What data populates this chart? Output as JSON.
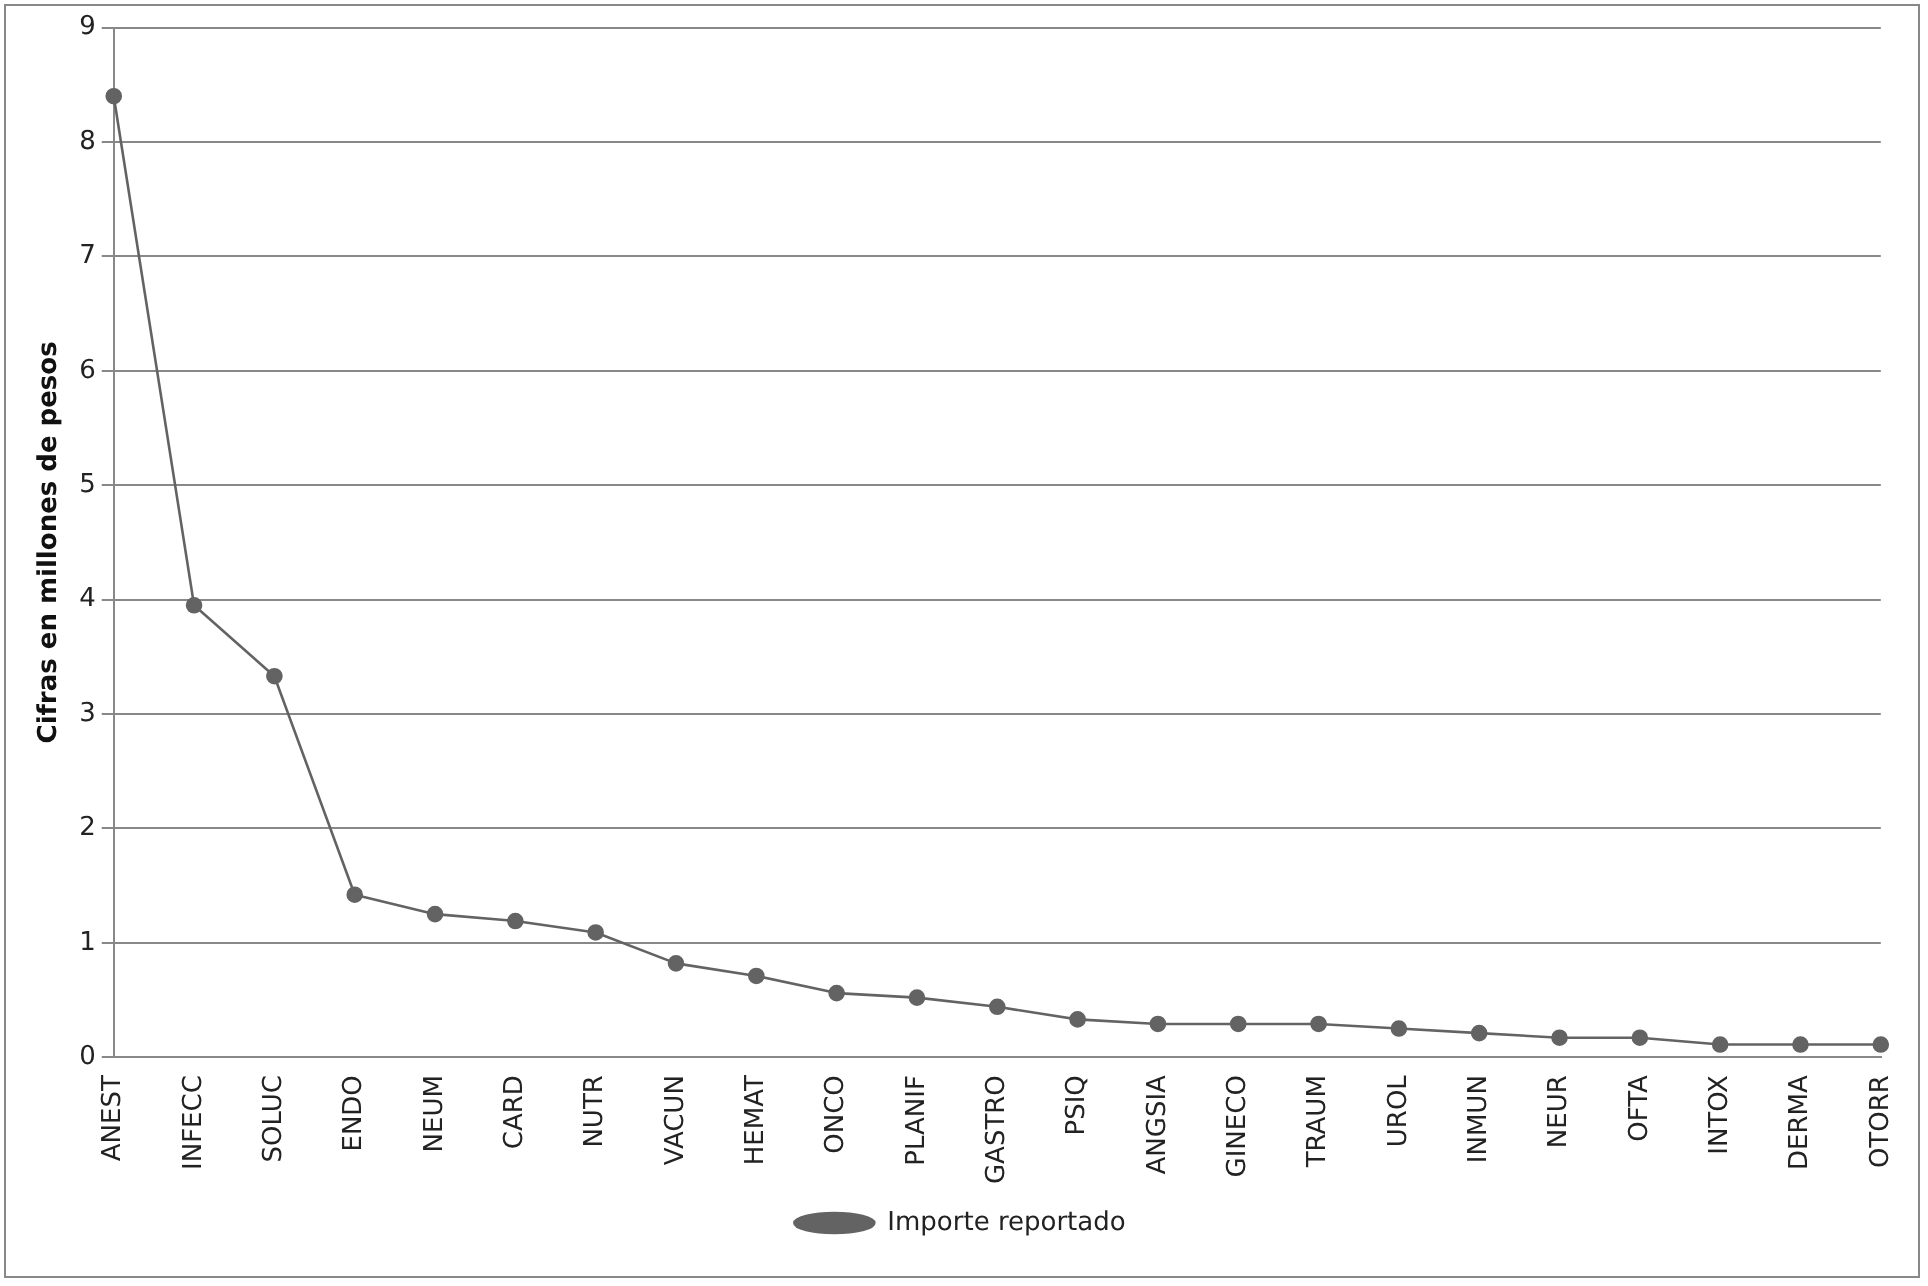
{
  "chart_data": {
    "type": "line",
    "ylabel": "Cifras en millones de pesos",
    "categories": [
      "ANEST",
      "INFECC",
      "SOLUC",
      "ENDO",
      "NEUM",
      "CARD",
      "NUTR",
      "VACUN",
      "HEMAT",
      "ONCO",
      "PLANIF",
      "GASTRO",
      "PSIQ",
      "ANGSIA",
      "GINECO",
      "TRAUM",
      "UROL",
      "INMUN",
      "NEUR",
      "OFTA",
      "INTOX",
      "DERMA",
      "OTORR"
    ],
    "series": [
      {
        "name": "Importe reportado",
        "color": "#636363",
        "values": [
          8.4,
          3.95,
          3.33,
          1.42,
          1.25,
          1.19,
          1.09,
          0.82,
          0.71,
          0.56,
          0.52,
          0.44,
          0.33,
          0.29,
          0.29,
          0.29,
          0.25,
          0.21,
          0.17,
          0.17,
          0.11,
          0.11,
          0.11
        ]
      }
    ],
    "ylim": [
      0,
      9
    ],
    "yticks": [
      0,
      1,
      2,
      3,
      4,
      5,
      6,
      7,
      8,
      9
    ],
    "grid": "y",
    "legend": "bottom",
    "marker": "circle",
    "line_style": "solid"
  }
}
